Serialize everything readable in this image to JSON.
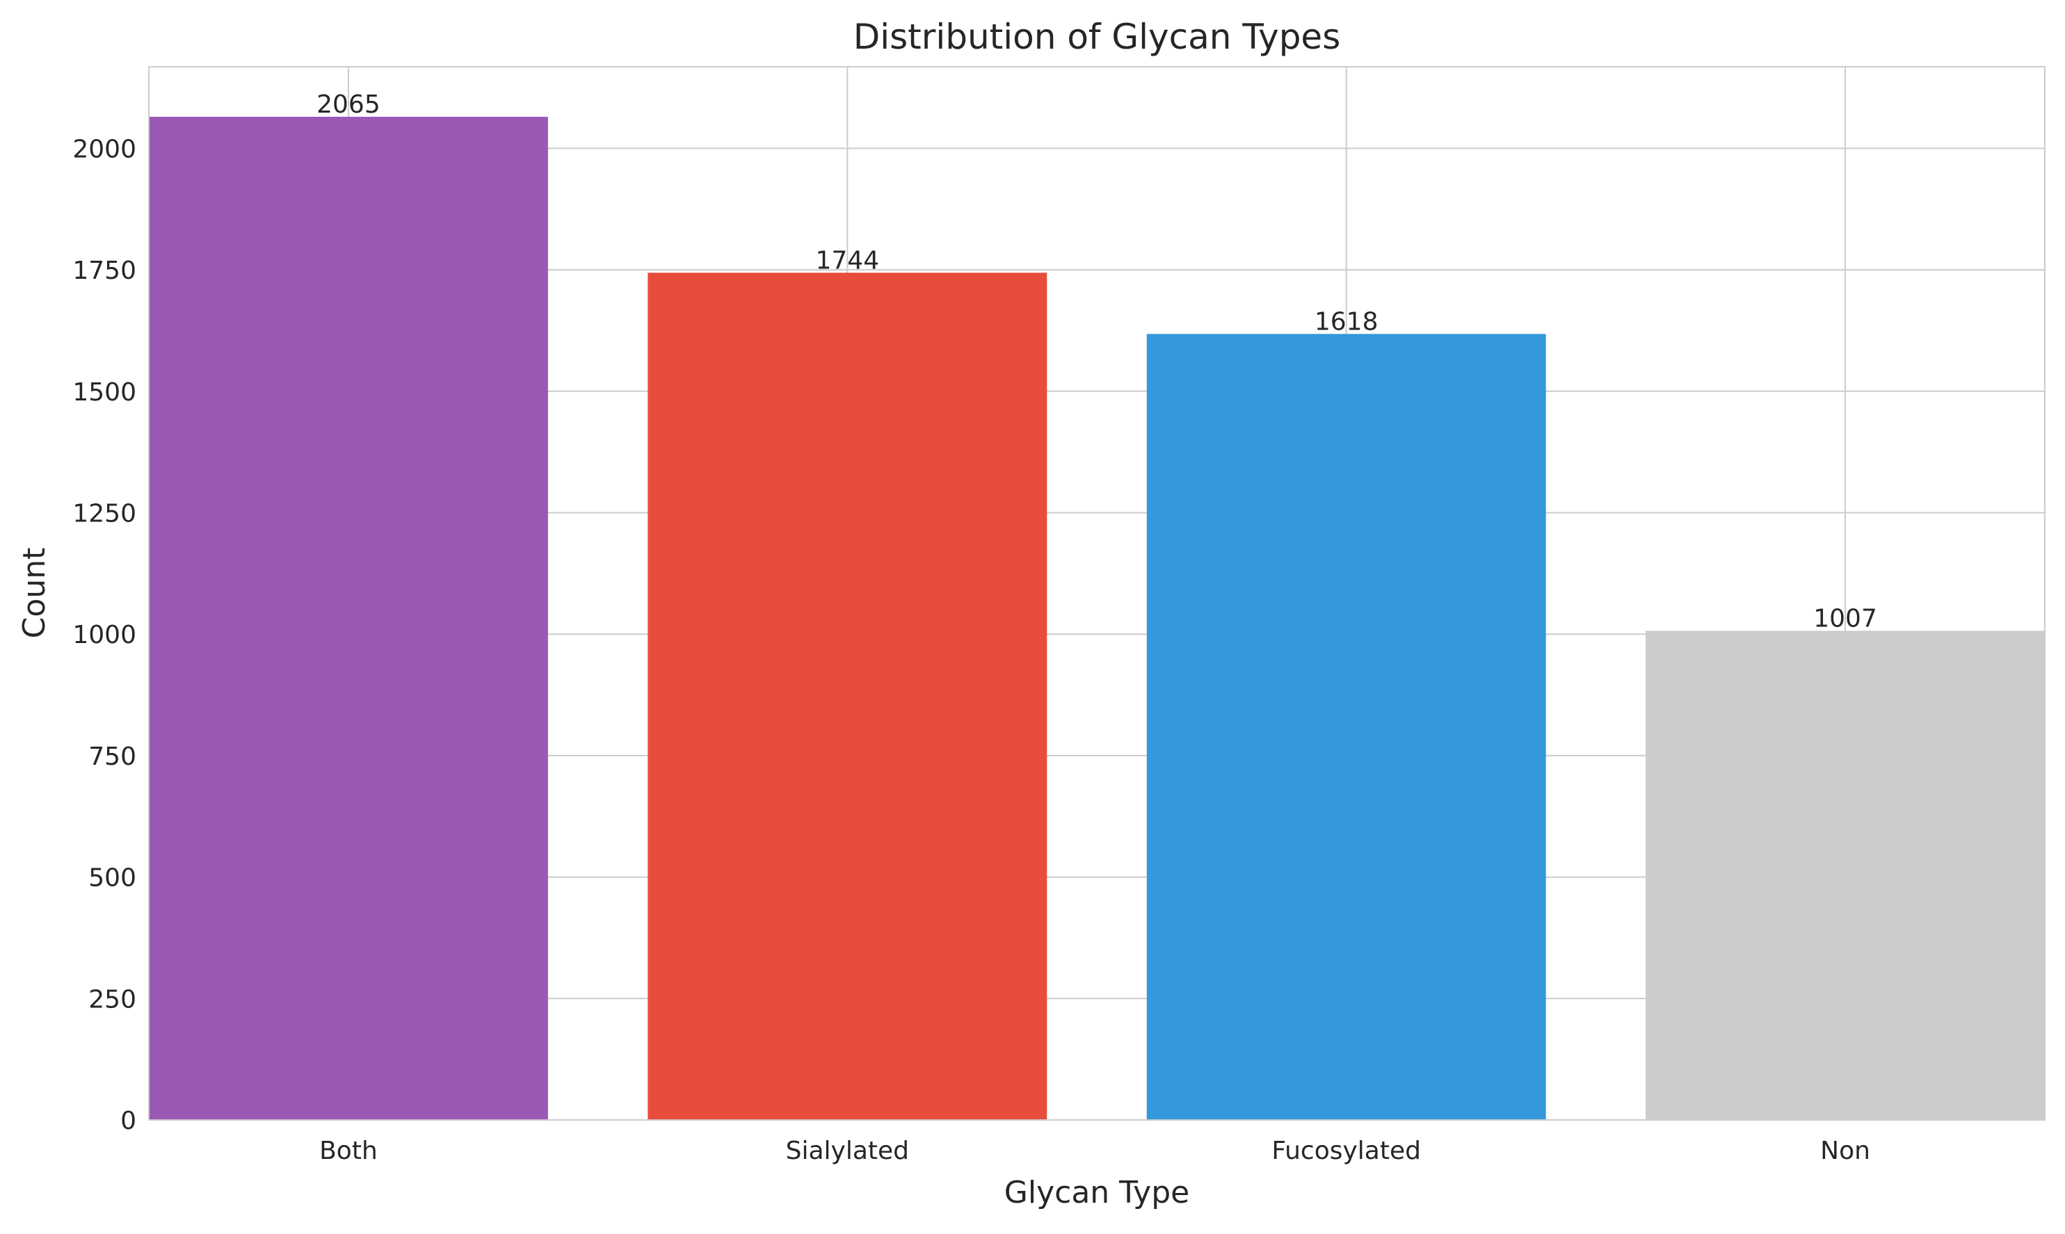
{
  "chart_data": {
    "type": "bar",
    "title": "Distribution of Glycan Types",
    "xlabel": "Glycan Type",
    "ylabel": "Count",
    "categories": [
      "Both",
      "Sialylated",
      "Fucosylated",
      "Non"
    ],
    "values": [
      2065,
      1744,
      1618,
      1007
    ],
    "data_labels": [
      "2065",
      "1744",
      "1618",
      "1007"
    ],
    "colors": [
      "#9b59b6",
      "#e74c3c",
      "#3498db",
      "#cccccc"
    ],
    "ylim": [
      0,
      2168
    ],
    "yticks": [
      0,
      250,
      500,
      750,
      1000,
      1250,
      1500,
      1750,
      2000
    ],
    "ytick_labels": [
      "0",
      "250",
      "500",
      "750",
      "1000",
      "1250",
      "1500",
      "1750",
      "2000"
    ],
    "grid": true,
    "legend": "none"
  },
  "style": {
    "grid_color": "#cccccc",
    "axes_edge_color": "#cccccc",
    "text_color": "#262626",
    "background": "#ffffff"
  }
}
